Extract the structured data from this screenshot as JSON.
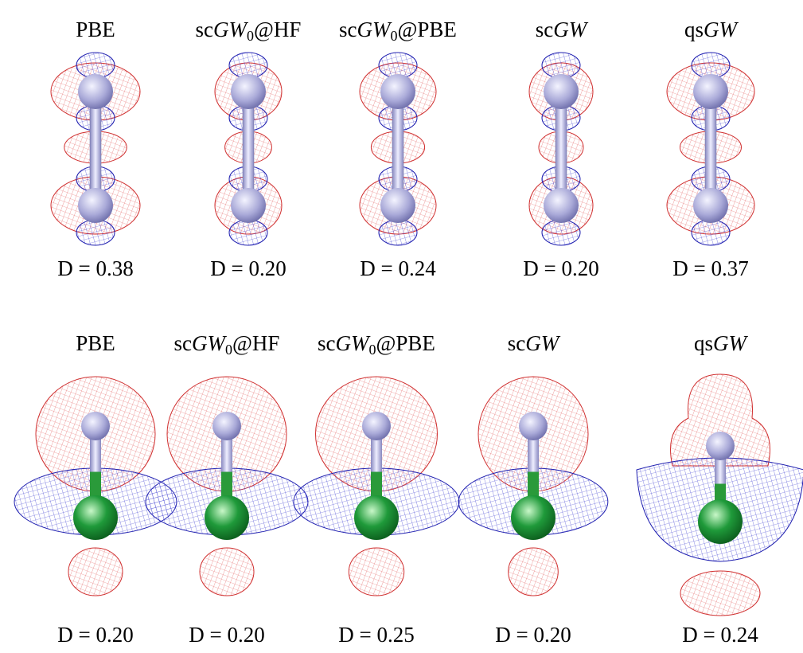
{
  "rows": [
    {
      "panels": [
        {
          "label_parts": [
            {
              "text": "PBE"
            }
          ],
          "d": "D = 0.38"
        },
        {
          "label_parts": [
            {
              "text": "sc"
            },
            {
              "text": "GW",
              "style": "italic"
            },
            {
              "text": "0",
              "style": "sub"
            },
            {
              "text": "@HF"
            }
          ],
          "d": "D = 0.20"
        },
        {
          "label_parts": [
            {
              "text": "sc"
            },
            {
              "text": "GW",
              "style": "italic"
            },
            {
              "text": "0",
              "style": "sub"
            },
            {
              "text": "@PBE"
            }
          ],
          "d": "D = 0.24"
        },
        {
          "label_parts": [
            {
              "text": "sc"
            },
            {
              "text": "GW",
              "style": "italic"
            }
          ],
          "d": "D = 0.20"
        },
        {
          "label_parts": [
            {
              "text": "qs"
            },
            {
              "text": "GW",
              "style": "italic"
            }
          ],
          "d": "D = 0.37"
        }
      ]
    },
    {
      "panels": [
        {
          "label_parts": [
            {
              "text": "PBE"
            }
          ],
          "d": "D = 0.20"
        },
        {
          "label_parts": [
            {
              "text": "sc"
            },
            {
              "text": "GW",
              "style": "italic"
            },
            {
              "text": "0",
              "style": "sub"
            },
            {
              "text": "@HF"
            }
          ],
          "d": "D = 0.20"
        },
        {
          "label_parts": [
            {
              "text": "sc"
            },
            {
              "text": "GW",
              "style": "italic"
            },
            {
              "text": "0",
              "style": "sub"
            },
            {
              "text": "@PBE"
            }
          ],
          "d": "D = 0.25"
        },
        {
          "label_parts": [
            {
              "text": "sc"
            },
            {
              "text": "GW",
              "style": "italic"
            }
          ],
          "d": "D = 0.20"
        },
        {
          "label_parts": [
            {
              "text": "qs"
            },
            {
              "text": "GW",
              "style": "italic"
            }
          ],
          "d": "D = 0.24"
        }
      ]
    }
  ]
}
